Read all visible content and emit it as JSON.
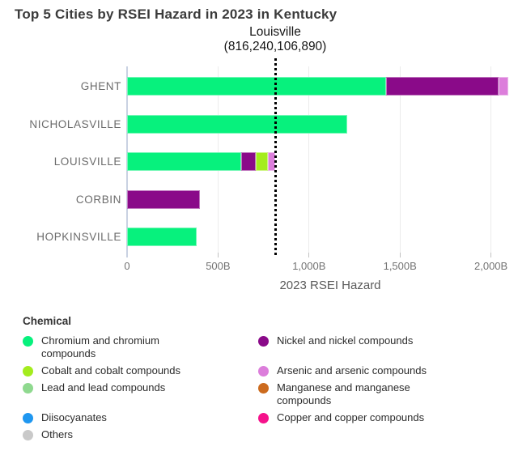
{
  "title": "Top 5 Cities by RSEI Hazard in 2023 in Kentucky",
  "annotation": {
    "line1": "Louisville",
    "line2": "(816,240,106,890)"
  },
  "axis": {
    "label": "2023 RSEI Hazard",
    "ticks": [
      {
        "label": "0",
        "value_billions": 0
      },
      {
        "label": "500B",
        "value_billions": 500
      },
      {
        "label": "1,000B",
        "value_billions": 1000
      },
      {
        "label": "1,500B",
        "value_billions": 1500
      },
      {
        "label": "2,000B",
        "value_billions": 2000
      }
    ]
  },
  "chart_data": {
    "type": "bar",
    "orientation": "horizontal",
    "stacked": true,
    "title": "Top 5 Cities by RSEI Hazard in 2023 in Kentucky",
    "xlabel": "2023 RSEI Hazard",
    "ylabel": "",
    "unit": "billions (RSEI Hazard)",
    "xlim_billions": [
      0,
      2000
    ],
    "grid": "vertical-light",
    "categories": [
      "GHENT",
      "NICHOLASVILLE",
      "LOUISVILLE",
      "CORBIN",
      "HOPKINSVILLE"
    ],
    "rows": [
      {
        "city": "GHENT",
        "segments": [
          {
            "chemical": "Chromium and chromium compounds",
            "value_billions": 1425
          },
          {
            "chemical": "Nickel and nickel compounds",
            "value_billions": 618
          },
          {
            "chemical": "Arsenic and arsenic compounds",
            "value_billions": 50
          }
        ]
      },
      {
        "city": "NICHOLASVILLE",
        "segments": [
          {
            "chemical": "Chromium and chromium compounds",
            "value_billions": 1210
          }
        ]
      },
      {
        "city": "LOUISVILLE",
        "segments": [
          {
            "chemical": "Chromium and chromium compounds",
            "value_billions": 628
          },
          {
            "chemical": "Nickel and nickel compounds",
            "value_billions": 80
          },
          {
            "chemical": "Cobalt and cobalt compounds",
            "value_billions": 68
          },
          {
            "chemical": "Arsenic and arsenic compounds",
            "value_billions": 40
          }
        ]
      },
      {
        "city": "CORBIN",
        "segments": [
          {
            "chemical": "Nickel and nickel compounds",
            "value_billions": 400
          }
        ]
      },
      {
        "city": "HOPKINSVILLE",
        "segments": [
          {
            "chemical": "Chromium and chromium compounds",
            "value_billions": 383
          }
        ]
      }
    ],
    "reference_line": {
      "label": "Louisville",
      "value_text": "(816,240,106,890)",
      "value_billions": 816.24,
      "style": "black-dotted-vertical"
    }
  },
  "legend": {
    "title": "Chemical",
    "rows": [
      [
        {
          "chemical": "Chromium and chromium compounds",
          "color": "#07F17D"
        },
        {
          "chemical": "Nickel and nickel compounds",
          "color": "#8A0A89"
        }
      ],
      [
        {
          "chemical": "Cobalt and cobalt compounds",
          "color": "#A4EC1E"
        },
        {
          "chemical": "Arsenic and arsenic compounds",
          "color": "#DC7EDB"
        }
      ],
      [
        {
          "chemical": "Lead and lead compounds",
          "color": "#8FD98F"
        },
        {
          "chemical": "Manganese and manganese compounds",
          "color": "#CC6B1E"
        }
      ],
      [
        {
          "chemical": "Diisocyanates",
          "color": "#1F97F0"
        },
        {
          "chemical": "Copper and copper compounds",
          "color": "#F5128B"
        }
      ],
      [
        {
          "chemical": "Others",
          "color": "#C9C9C9"
        },
        null
      ]
    ]
  }
}
